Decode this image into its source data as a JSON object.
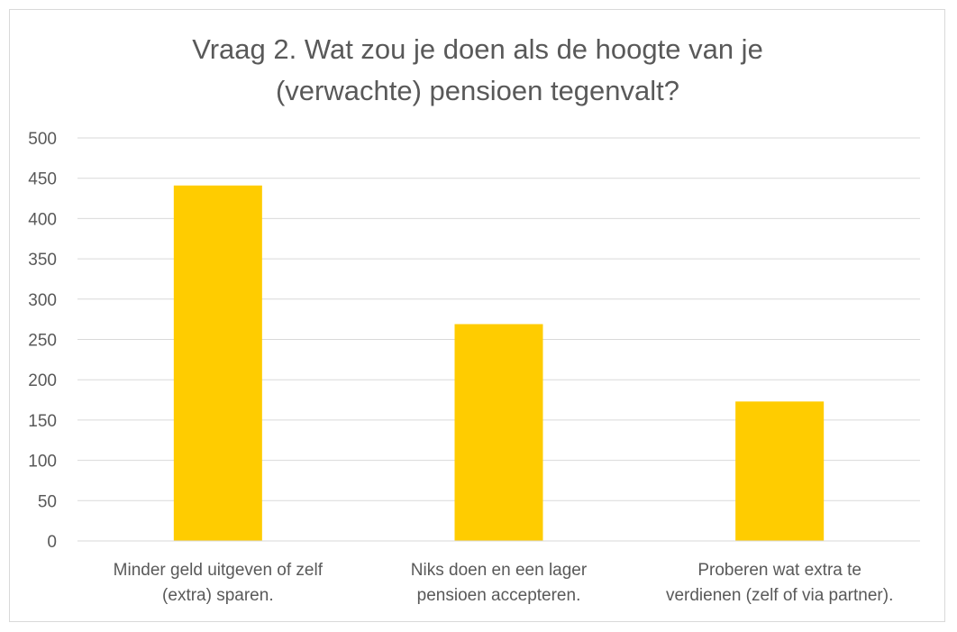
{
  "chart_data": {
    "type": "bar",
    "title_lines": [
      "Vraag 2. Wat zou je doen als de hoogte van je",
      "(verwachte) pensioen tegenvalt?"
    ],
    "categories": [
      [
        "Minder geld uitgeven of zelf",
        "(extra) sparen."
      ],
      [
        "Niks doen en een lager",
        "pensioen accepteren."
      ],
      [
        "Proberen wat extra te",
        "verdienen (zelf of via partner)."
      ]
    ],
    "values": [
      441,
      269,
      173
    ],
    "ylim": [
      0,
      500
    ],
    "yticks": [
      0,
      50,
      100,
      150,
      200,
      250,
      300,
      350,
      400,
      450,
      500
    ],
    "grid": true,
    "legend": "none",
    "bar_color": "#FFCC00",
    "grid_color": "#d9d9d9",
    "text_color": "#595959"
  }
}
